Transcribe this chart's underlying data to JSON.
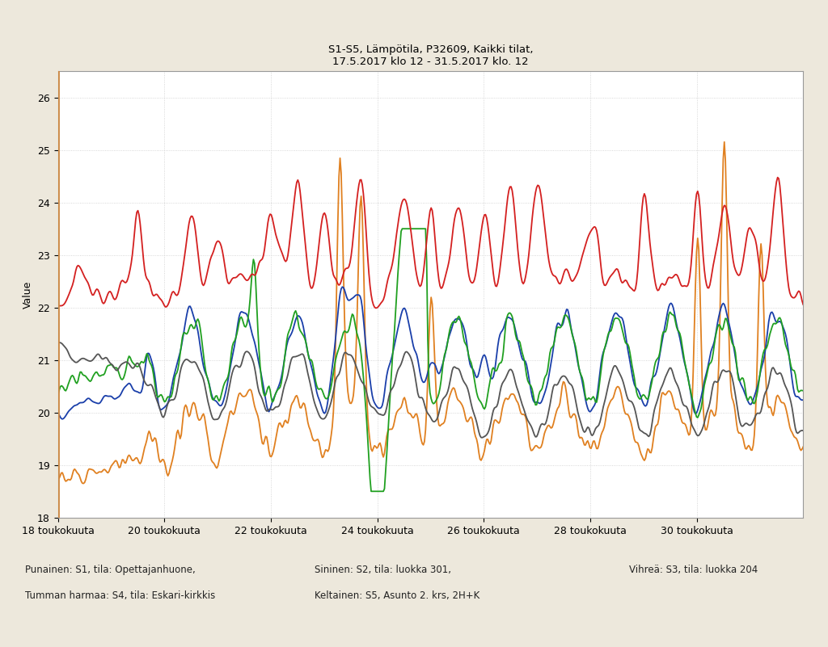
{
  "title_line1": "S1-S5, Lämpötila, P32609, Kaikki tilat,",
  "title_line2": "17.5.2017 klo 12 - 31.5.2017 klo. 12",
  "ylabel": "Value",
  "ylim": [
    18,
    26.5
  ],
  "yticks": [
    18,
    19,
    20,
    21,
    22,
    23,
    24,
    25,
    26
  ],
  "xtick_labels": [
    "18 toukokuuta",
    "20 toukokuuta",
    "22 toukokuuta",
    "24 toukokuuta",
    "26 toukokuuta",
    "28 toukokuuta",
    "30 toukokuuta"
  ],
  "colors": {
    "red": "#d42020",
    "blue": "#1a3faa",
    "green": "#20a020",
    "orange": "#e08020",
    "dark_gray": "#555555"
  },
  "legend_texts": [
    "Punainen: S1, tila: Opettajanhuone,",
    "Tumman harmaa: S4, tila: Eskari-kirkkis",
    "Sininen: S2, tila: luokka 301,",
    "Keltainen: S5, Asunto 2. krs, 2H+K",
    "Vihreä: S3, tila: luokka 204"
  ],
  "background_color": "#ede8dc",
  "plot_bg": "#ffffff",
  "grid_color": "#cccccc",
  "title_fontsize": 9.5,
  "axis_fontsize": 9,
  "legend_fontsize": 8.5,
  "line_width": 1.3
}
